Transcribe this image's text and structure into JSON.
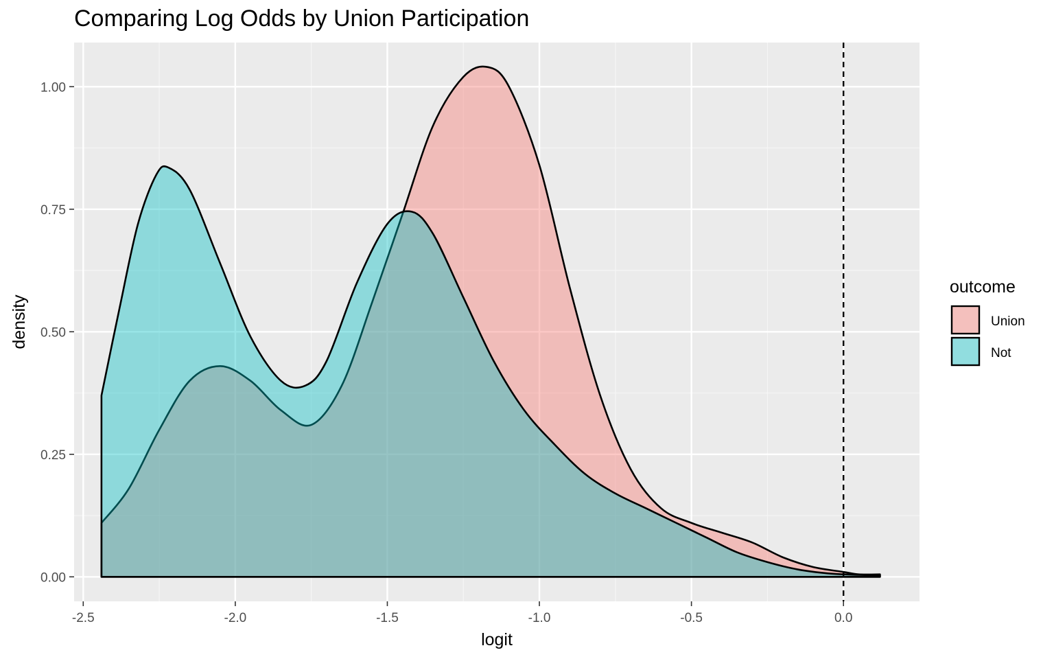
{
  "chart_data": {
    "type": "area",
    "title": "Comparing Log Odds by Union Participation",
    "xlabel": "logit",
    "ylabel": "density",
    "xlim": [
      -2.53,
      0.25
    ],
    "ylim": [
      -0.05,
      1.09
    ],
    "xticks": [
      -2.5,
      -2.0,
      -1.5,
      -1.0,
      -0.5,
      0.0
    ],
    "xtick_labels": [
      "-2.5",
      "-2.0",
      "-1.5",
      "-1.0",
      "-0.5",
      "0.0"
    ],
    "yticks": [
      0.0,
      0.25,
      0.5,
      0.75,
      1.0
    ],
    "ytick_labels": [
      "0.00",
      "0.25",
      "0.50",
      "0.75",
      "1.00"
    ],
    "grid": true,
    "vline": {
      "x": 0.0,
      "style": "dashed"
    },
    "legend": {
      "title": "outcome",
      "position": "right",
      "entries": [
        "Union",
        "Not"
      ]
    },
    "series": [
      {
        "name": "Union",
        "color": "#F8766D",
        "x": [
          -2.44,
          -2.35,
          -2.25,
          -2.15,
          -2.05,
          -1.95,
          -1.85,
          -1.75,
          -1.65,
          -1.55,
          -1.45,
          -1.35,
          -1.25,
          -1.17,
          -1.1,
          -1.0,
          -0.9,
          -0.8,
          -0.7,
          -0.6,
          -0.5,
          -0.4,
          -0.3,
          -0.2,
          -0.1,
          0.0,
          0.05,
          0.12
        ],
        "y": [
          0.11,
          0.18,
          0.3,
          0.4,
          0.43,
          0.4,
          0.34,
          0.31,
          0.39,
          0.56,
          0.74,
          0.92,
          1.02,
          1.04,
          1.0,
          0.84,
          0.59,
          0.37,
          0.22,
          0.14,
          0.11,
          0.09,
          0.07,
          0.04,
          0.02,
          0.01,
          0.005,
          0.005
        ]
      },
      {
        "name": "Not",
        "color": "#00BFC4",
        "x": [
          -2.44,
          -2.38,
          -2.32,
          -2.26,
          -2.22,
          -2.15,
          -2.05,
          -1.95,
          -1.85,
          -1.77,
          -1.7,
          -1.6,
          -1.5,
          -1.42,
          -1.35,
          -1.25,
          -1.15,
          -1.05,
          -0.95,
          -0.85,
          -0.75,
          -0.65,
          -0.55,
          -0.45,
          -0.35,
          -0.25,
          -0.15,
          -0.05,
          0.05,
          0.12
        ],
        "y": [
          0.37,
          0.55,
          0.72,
          0.82,
          0.835,
          0.79,
          0.64,
          0.49,
          0.4,
          0.39,
          0.44,
          0.6,
          0.72,
          0.745,
          0.7,
          0.57,
          0.44,
          0.34,
          0.27,
          0.21,
          0.17,
          0.14,
          0.11,
          0.08,
          0.05,
          0.03,
          0.015,
          0.007,
          0.004,
          0.003
        ]
      }
    ]
  }
}
